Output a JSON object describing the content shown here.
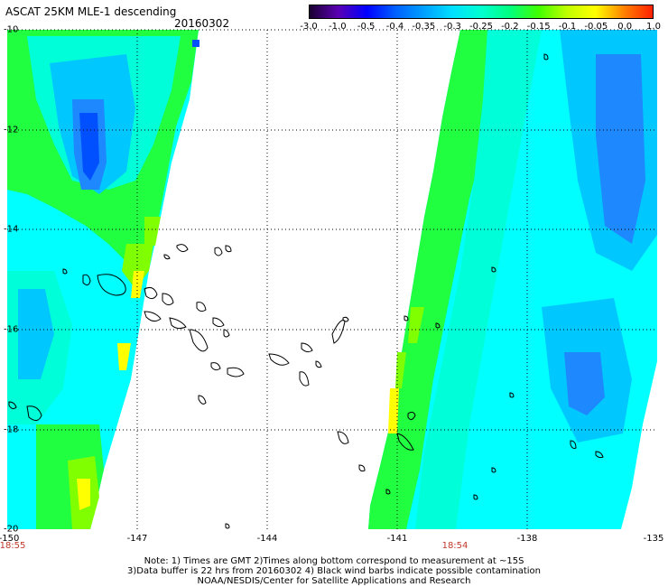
{
  "header": {
    "title": "ASCAT 25KM MLE-1 descending",
    "date": "20160302"
  },
  "colorbar": {
    "labels": [
      "-3.0",
      "-1.0",
      "-0.5",
      "-0.4",
      "-0.35",
      "-0.3",
      "-0.25",
      "-0.2",
      "-0.15",
      "-0.1",
      "-0.05",
      "0.0",
      "1.0"
    ],
    "colors": [
      "#1a0030",
      "#5a00b4",
      "#0000ff",
      "#0060ff",
      "#00a0ff",
      "#00e0ff",
      "#00ffd0",
      "#00ff80",
      "#40ff00",
      "#c0ff00",
      "#ffff00",
      "#ff8000",
      "#ff2000"
    ]
  },
  "map": {
    "lat_labels": [
      "-10",
      "-12",
      "-14",
      "-16",
      "-18",
      "-20"
    ],
    "lon_labels": [
      "-150",
      "-147",
      "-144",
      "-141",
      "-138",
      "-135"
    ],
    "swath_times": [
      "18:55",
      "18:54"
    ],
    "swath_colors": {
      "cyan": "#00ffff",
      "teal": "#00ffd8",
      "green": "#20ff40",
      "lime": "#80ff00",
      "yellow": "#ffff00",
      "blue": "#1e88ff",
      "deepblue": "#0050ff",
      "lightblue": "#00c8ff"
    }
  },
  "notes": {
    "line1": "Note: 1) Times are GMT 2)Times along bottom correspond to measurement at ~15S",
    "line2": "3)Data buffer is 22 hrs from 20160302 4) Black wind barbs indicate possible contamination",
    "line3": "NOAA/NESDIS/Center for Satellite Applications and Research"
  }
}
